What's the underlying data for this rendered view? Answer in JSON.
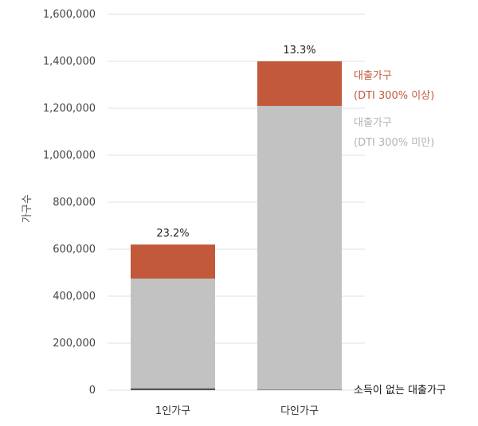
{
  "chart_data": {
    "type": "bar",
    "stacked": true,
    "categories": [
      "1인가구",
      "다인가구"
    ],
    "ylabel": "가구수",
    "ylim": [
      0,
      1600000
    ],
    "yticks": [
      0,
      200000,
      400000,
      600000,
      800000,
      1000000,
      1200000,
      1400000,
      1600000
    ],
    "ytick_labels": [
      "0",
      "200,000",
      "400,000",
      "600,000",
      "800,000",
      "1,000,000",
      "1,200,000",
      "1,400,000",
      "1,600,000"
    ],
    "grid": true,
    "series": [
      {
        "name": "소득이 없는 대출가구",
        "color": "#555555",
        "values": [
          8000,
          2000
        ]
      },
      {
        "name": "대출가구 (DTI 300% 미만)",
        "color": "#c2c2c2",
        "values": [
          467000,
          1208000
        ]
      },
      {
        "name": "대출가구 (DTI 300% 이상)",
        "color": "#c1593a",
        "values": [
          145000,
          190000
        ]
      }
    ],
    "bar_labels": [
      "23.2%",
      "13.3%"
    ],
    "legend": {
      "placement": "right",
      "entries": [
        {
          "line1": "대출가구",
          "line2": "(DTI 300% 이상)",
          "color": "#c1593a"
        },
        {
          "line1": "대출가구",
          "line2": "(DTI 300% 미만)",
          "color": "#b8b8b8"
        }
      ],
      "annotation": "소득이 없는 대출가구"
    }
  }
}
